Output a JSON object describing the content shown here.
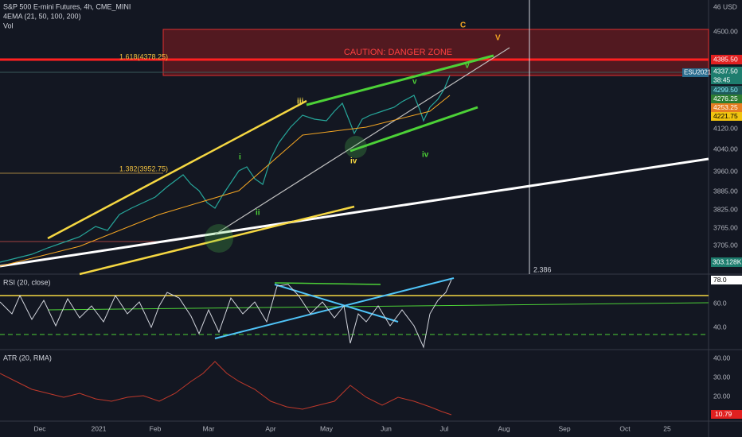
{
  "header": {
    "title": "S&P 500 E-mini Futures, 4h, CME_MINI",
    "ema": "4EMA (21, 50, 100, 200)",
    "volume": "Vol"
  },
  "price_axis": {
    "top": "46",
    "currency": "USD",
    "labels": [
      "4500.00",
      "4120.00",
      "4040.00",
      "3960.00",
      "3885.00",
      "3825.00",
      "3765.00",
      "3705.00"
    ]
  },
  "badges": {
    "level": "4385.50",
    "symbol": "ESU2021",
    "last": "4337.50",
    "countdown": "38:45",
    "ema1": "4299.50",
    "ema2": "4276.25",
    "ema3": "4253.25",
    "ema4": "4221.75",
    "vol": "303.128K"
  },
  "annotations": {
    "zone": "CAUTION: DANGER ZONE",
    "fib1": "1.618(4378.25)",
    "fib2": "1.382(3952.75)",
    "wave_c": "C",
    "wave_v_big": "V",
    "wave_v1": "v",
    "wave_v2": "v",
    "wave_iii": "iii",
    "wave_iv1": "iv",
    "wave_iv2": "iv",
    "wave_i": "i",
    "wave_ii": "ii",
    "crosshair": "2.386"
  },
  "rsi": {
    "title": "RSI (20, close)",
    "labels": [
      "78.0",
      "60.0",
      "40.0"
    ]
  },
  "atr": {
    "title": "ATR (20, RMA)",
    "labels": [
      "40.00",
      "30.00",
      "20.00",
      "10.79"
    ]
  },
  "time_axis": [
    "Dec",
    "2021",
    "Feb",
    "Mar",
    "Apr",
    "May",
    "Jun",
    "Jul",
    "Aug",
    "Sep",
    "Oct",
    "25"
  ]
}
